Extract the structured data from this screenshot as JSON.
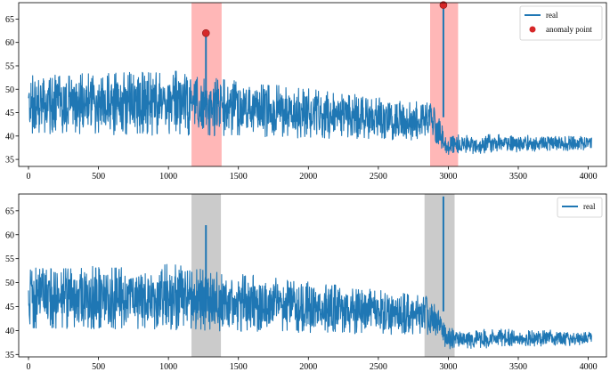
{
  "colors": {
    "line": "#1f77b4",
    "anomaly_point": "#d62728",
    "anomaly_span_top": "#ff9999",
    "anomaly_span_bottom": "#a9a9a9"
  },
  "chart_data": [
    {
      "type": "line",
      "panel": "top",
      "xlim": [
        -70,
        4130
      ],
      "ylim": [
        33.5,
        68.5
      ],
      "xticks": [
        0,
        500,
        1000,
        1500,
        2000,
        2500,
        3000,
        3500,
        4000
      ],
      "yticks": [
        35,
        40,
        45,
        50,
        55,
        60,
        65
      ],
      "legend_position": "top-right",
      "series": [
        {
          "name": "real",
          "segments": [
            {
              "x_start": 0,
              "x_end": 1200,
              "low_start": 40.5,
              "high_start": 53,
              "low_end": 40,
              "high_end": 54
            },
            {
              "x_start": 1200,
              "x_end": 2900,
              "low_start": 40,
              "high_start": 53,
              "low_end": 39,
              "high_end": 47
            },
            {
              "x_start": 2900,
              "x_end": 2990,
              "low_start": 39,
              "high_start": 47,
              "low_end": 36,
              "high_end": 40
            },
            {
              "x_start": 2990,
              "x_end": 4025,
              "low_start": 36,
              "high_start": 40.5,
              "low_end": 37,
              "high_end": 40
            }
          ],
          "spikes": [
            {
              "x": 1268,
              "y": 62
            },
            {
              "x": 2965,
              "y": 68
            }
          ]
        },
        {
          "name": "anomaly point",
          "points": [
            {
              "x": 1268,
              "y": 62
            },
            {
              "x": 2965,
              "y": 68
            }
          ]
        }
      ],
      "spans": [
        {
          "x_start": 1165,
          "x_end": 1380
        },
        {
          "x_start": 2870,
          "x_end": 3070
        }
      ]
    },
    {
      "type": "line",
      "panel": "bottom",
      "xlim": [
        -70,
        4130
      ],
      "ylim": [
        34.5,
        68.5
      ],
      "xticks": [
        0,
        500,
        1000,
        1500,
        2000,
        2500,
        3000,
        3500,
        4000
      ],
      "yticks": [
        35,
        40,
        45,
        50,
        55,
        60,
        65
      ],
      "legend_position": "top-right",
      "series": [
        {
          "name": "real",
          "segments": [
            {
              "x_start": 0,
              "x_end": 1200,
              "low_start": 40.5,
              "high_start": 53,
              "low_end": 40,
              "high_end": 54
            },
            {
              "x_start": 1200,
              "x_end": 2900,
              "low_start": 40,
              "high_start": 53,
              "low_end": 39,
              "high_end": 47
            },
            {
              "x_start": 2900,
              "x_end": 2990,
              "low_start": 39,
              "high_start": 47,
              "low_end": 36,
              "high_end": 40
            },
            {
              "x_start": 2990,
              "x_end": 4025,
              "low_start": 36,
              "high_start": 40.5,
              "low_end": 37,
              "high_end": 40
            }
          ],
          "spikes": [
            {
              "x": 1268,
              "y": 62
            },
            {
              "x": 2965,
              "y": 68
            }
          ]
        }
      ],
      "spans": [
        {
          "x_start": 1165,
          "x_end": 1375
        },
        {
          "x_start": 2830,
          "x_end": 3045
        }
      ]
    }
  ]
}
